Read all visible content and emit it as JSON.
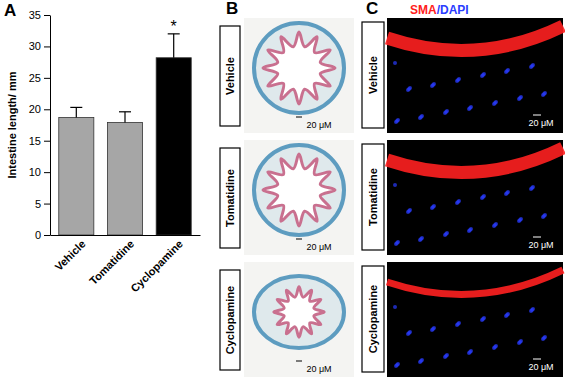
{
  "chart_data": {
    "type": "bar",
    "panel_label": "A",
    "y_label": "Intestine length/ mm",
    "categories": [
      "Vehicle",
      "Tomatidine",
      "Cyclopamine"
    ],
    "values": [
      18.7,
      17.9,
      28.2
    ],
    "errors": [
      1.6,
      1.7,
      3.8
    ],
    "colors": [
      "#a6a6a6",
      "#a6a6a6",
      "#000000"
    ],
    "annotations": [
      {
        "text": "*",
        "category": 2
      }
    ],
    "ylim": [
      0,
      35
    ],
    "yticks": [
      0,
      5,
      10,
      15,
      20,
      25,
      30,
      35
    ]
  },
  "panel_b": {
    "label": "B",
    "rows": [
      {
        "name": "Vehicle",
        "scale_bar": "20 μM"
      },
      {
        "name": "Tomatidine",
        "scale_bar": "20 μM"
      },
      {
        "name": "Cyclopamine",
        "scale_bar": "20 μM"
      }
    ]
  },
  "panel_c": {
    "label": "C",
    "stain": [
      {
        "text": "SMA",
        "color": "#ff2020"
      },
      {
        "text": "/DAPI",
        "color": "#2a3cff"
      }
    ],
    "rows": [
      {
        "name": "Vehicle",
        "scale_bar": "20 μM"
      },
      {
        "name": "Tomatidine",
        "scale_bar": "20 μM"
      },
      {
        "name": "Cyclopamine",
        "scale_bar": "20 μM"
      }
    ]
  }
}
